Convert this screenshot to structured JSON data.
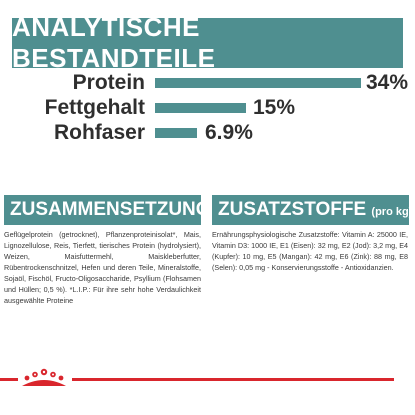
{
  "banner": {
    "title": "ANALYTISCHE BESTANDTEILE"
  },
  "nutrients": [
    {
      "label": "Protein",
      "value": "34%",
      "fraction": 0.34
    },
    {
      "label": "Fettgehalt",
      "value": "15%",
      "fraction": 0.15
    },
    {
      "label": "Rohfaser",
      "value": "6.9%",
      "fraction": 0.069
    }
  ],
  "composition": {
    "heading": "ZUSAMMENSETZUNG",
    "text": "Geflügelprotein (getrocknet), Pflanzenproteinisolat*, Mais, Lignozellulose, Reis, Tierfett, tierisches Protein (hydrolysiert), Weizen, Maisfuttermehl, Maiskleberfutter, Rübentrockenschnitzel, Hefen und deren Teile, Mineralstoffe, Sojaöl, Fischöl, Fructo-Oligosaccharide, Psyllium (Flohsamen und Hüllen; 0,5 %). *L.I.P.: Für ihre sehr hohe Verdaulichkeit ausgewählte Proteine"
  },
  "additives": {
    "heading": "ZUSATZSTOFFE",
    "heading_suffix": "(pro kg)",
    "text": "Ernährungsphysiologische Zusatzstoffe: Vitamin A: 25000 IE, Vitamin D3: 1000 IE, E1 (Eisen): 32 mg, E2 (Jod): 3,2 mg, E4 (Kupfer): 10 mg, E5 (Mangan): 42 mg, E6 (Zink): 88 mg, E8 (Selen): 0,05 mg - Konservierungsstoffe - Antioxidanzien."
  },
  "brand": {
    "logo_icon": "royal-canin-crown-logo-icon"
  },
  "colors": {
    "accent": "#4f8f90",
    "brand_red": "#d9262d"
  }
}
